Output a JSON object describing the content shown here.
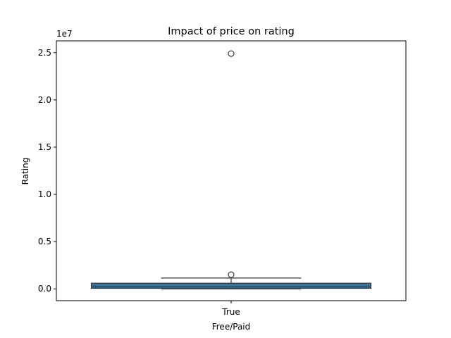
{
  "chart_data": {
    "type": "box",
    "title": "Impact of price on rating",
    "xlabel": "Free/Paid",
    "ylabel": "Rating",
    "y_offset_label": "1e7",
    "y_scale_factor": 10000000,
    "categories": [
      "True"
    ],
    "ylim": [
      -1250000,
      26250000
    ],
    "yticks": [
      0,
      5000000,
      10000000,
      15000000,
      20000000,
      25000000
    ],
    "ytick_labels": [
      "0.0",
      "0.5",
      "1.0",
      "1.5",
      "2.0",
      "2.5"
    ],
    "boxes": [
      {
        "category": "True",
        "whisker_low": 0,
        "q1": 60000,
        "median": 220000,
        "q3": 600000,
        "whisker_high": 1150000,
        "outliers": [
          1500000,
          24900000
        ]
      }
    ],
    "box_color": "#3274a1",
    "grid": false,
    "legend": "none"
  }
}
